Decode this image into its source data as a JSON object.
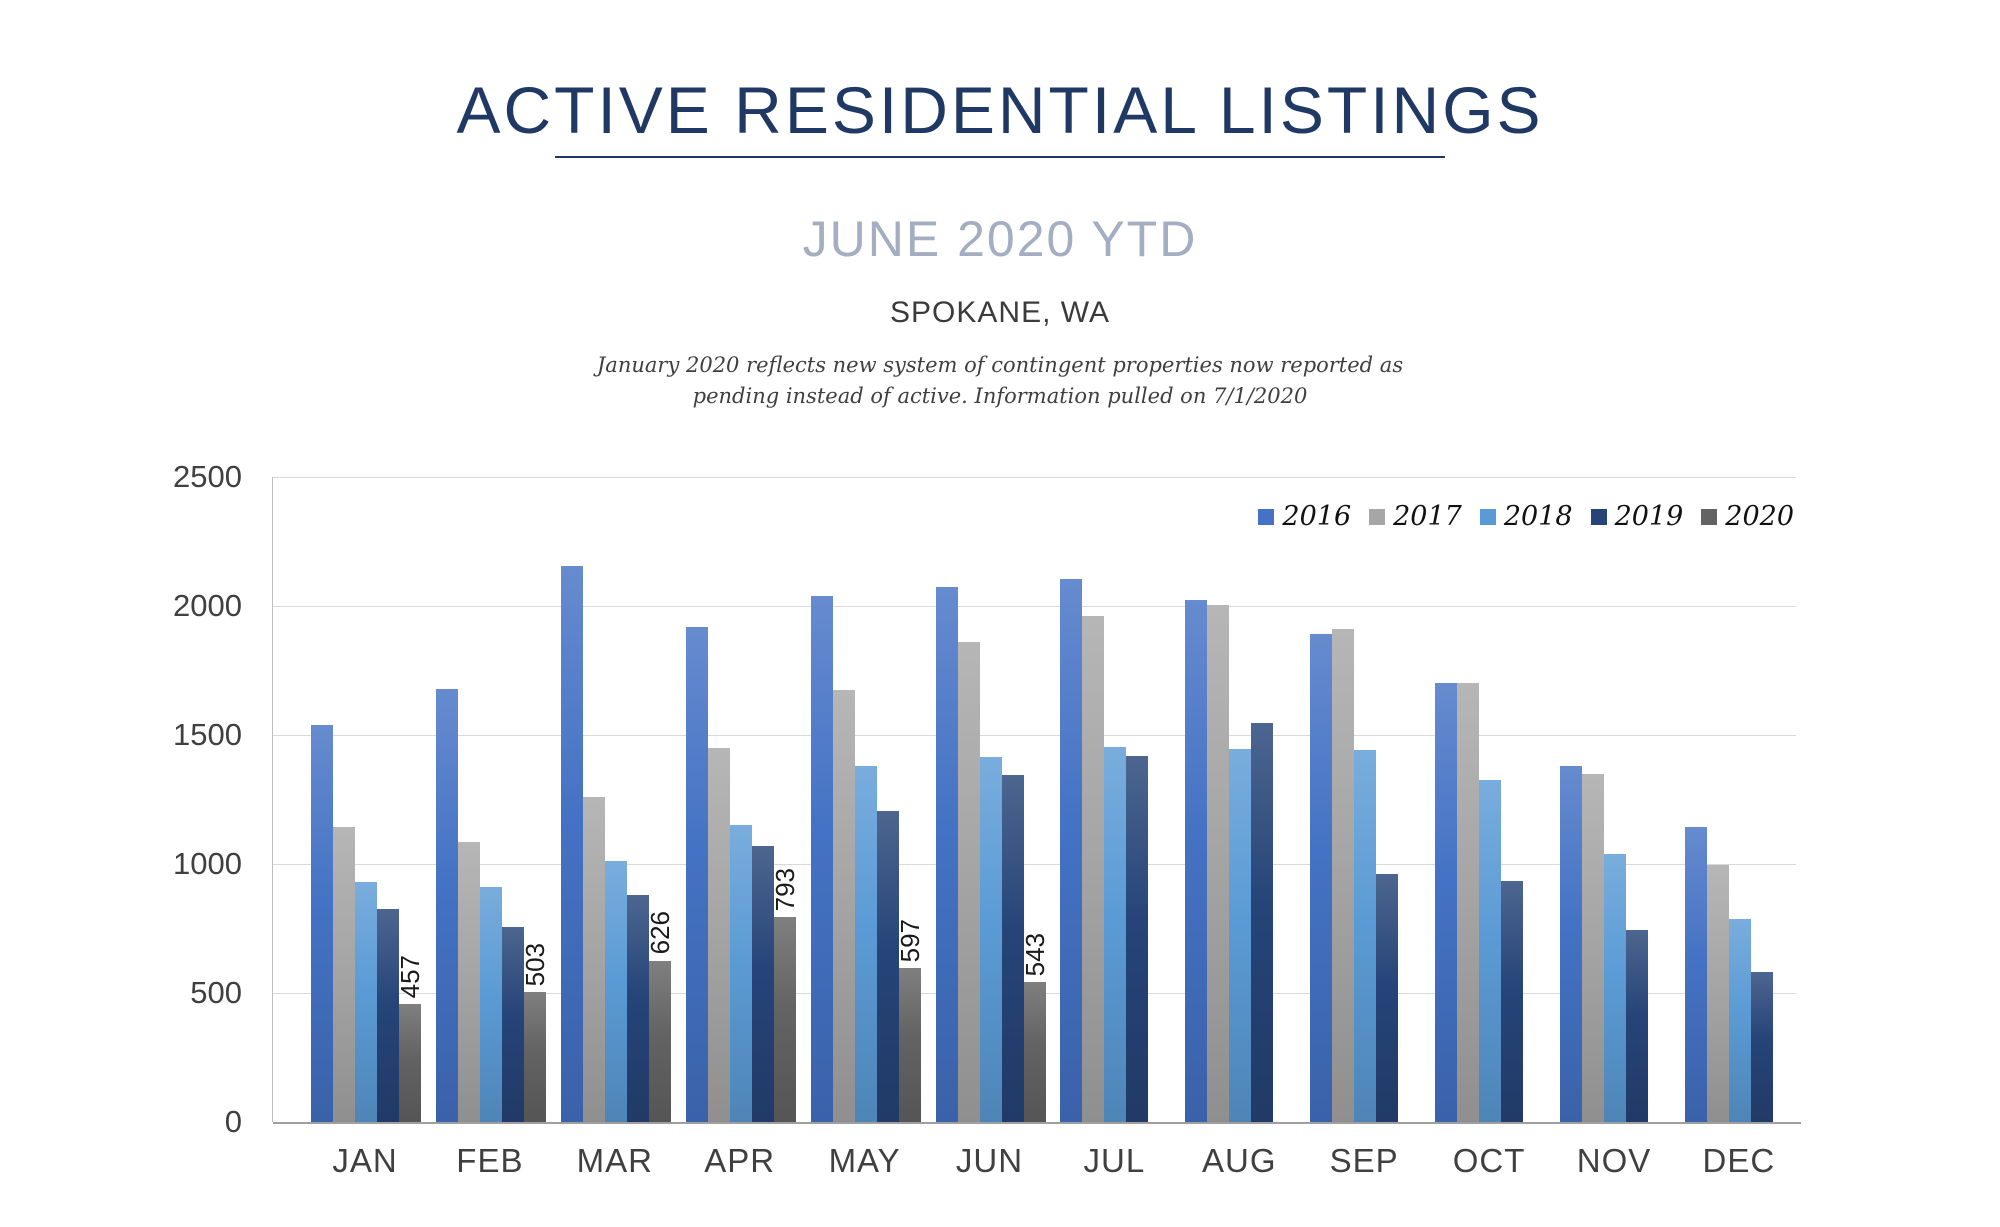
{
  "header": {
    "title": "ACTIVE RESIDENTIAL LISTINGS",
    "subtitle": "JUNE 2020 YTD",
    "location": "SPOKANE, WA",
    "note_line1": "January 2020 reflects new system of contingent properties now reported as",
    "note_line2": "pending instead of active.  Information pulled on 7/1/2020",
    "title_color": "#1F3864",
    "subtitle_color": "#A3AEC2"
  },
  "chart_data": {
    "type": "bar",
    "title": "",
    "xlabel": "",
    "ylabel": "",
    "categories": [
      "JAN",
      "FEB",
      "MAR",
      "APR",
      "MAY",
      "JUN",
      "JUL",
      "AUG",
      "SEP",
      "OCT",
      "NOV",
      "DEC"
    ],
    "series": [
      {
        "name": "2016",
        "color": "#4472C4",
        "values": [
          1540,
          1680,
          2155,
          1920,
          2040,
          2075,
          2105,
          2025,
          1890,
          1700,
          1380,
          1145
        ]
      },
      {
        "name": "2017",
        "color": "#A6A6A6",
        "values": [
          1145,
          1085,
          1260,
          1450,
          1675,
          1860,
          1960,
          2005,
          1910,
          1700,
          1350,
          995
        ]
      },
      {
        "name": "2018",
        "color": "#5B9BD5",
        "values": [
          930,
          910,
          1010,
          1150,
          1380,
          1415,
          1455,
          1445,
          1440,
          1325,
          1040,
          785
        ]
      },
      {
        "name": "2019",
        "color": "#264478",
        "values": [
          825,
          755,
          880,
          1070,
          1205,
          1345,
          1420,
          1545,
          960,
          935,
          745,
          580
        ]
      },
      {
        "name": "2020",
        "color": "#636363",
        "show_labels": true,
        "values": [
          457,
          503,
          626,
          793,
          597,
          543,
          null,
          null,
          null,
          null,
          null,
          null
        ]
      }
    ],
    "ylim": [
      0,
      2500
    ],
    "ytick_interval": 500,
    "grid": true,
    "legend_position": "top-right",
    "gridline_color": "#D9D9D9",
    "axis_text_color": "#404040"
  }
}
